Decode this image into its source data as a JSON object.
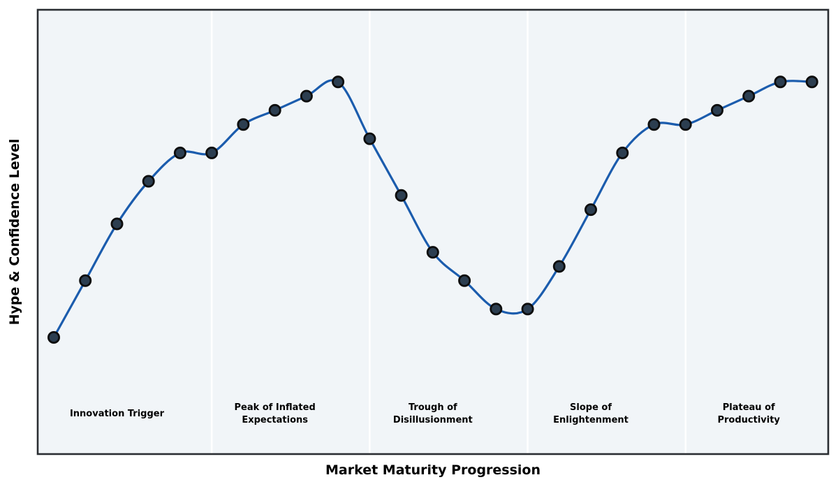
{
  "chart_data": {
    "type": "line",
    "xlabel": "Market Maturity Progression",
    "ylabel": "Hype & Confidence Level",
    "x": [
      0,
      1,
      2,
      3,
      4,
      5,
      6,
      7,
      8,
      9,
      10,
      11,
      12,
      13,
      14,
      15,
      16,
      17,
      18,
      19,
      20,
      21,
      22,
      23,
      24
    ],
    "values": [
      10,
      30,
      50,
      65,
      75,
      75,
      85,
      90,
      95,
      100,
      80,
      60,
      40,
      30,
      20,
      20,
      35,
      55,
      75,
      85,
      85,
      90,
      95,
      100,
      100
    ],
    "xlim": [
      -0.5,
      24.6
    ],
    "ylim": [
      -30,
      126
    ],
    "grid": false,
    "axis_ticks_visible": false,
    "phases": [
      {
        "label": "Innovation Trigger",
        "center_x": 2
      },
      {
        "label": "Peak of Inflated\nExpectations",
        "center_x": 7
      },
      {
        "label": "Trough of\nDisillusionment",
        "center_x": 12
      },
      {
        "label": "Slope of\nEnlightenment",
        "center_x": 17
      },
      {
        "label": "Plateau of\nProductivity",
        "center_x": 22
      }
    ],
    "phase_divider_x": [
      5,
      10,
      15,
      20
    ],
    "colors": {
      "line": "#1b5cad",
      "marker_fill": "#2c3e50",
      "marker_edge": "#0d0d0d",
      "plot_bg": "#f1f5f8",
      "frame": "#2a2d32",
      "divider": "#ffffff",
      "label_text": "#000000"
    }
  }
}
